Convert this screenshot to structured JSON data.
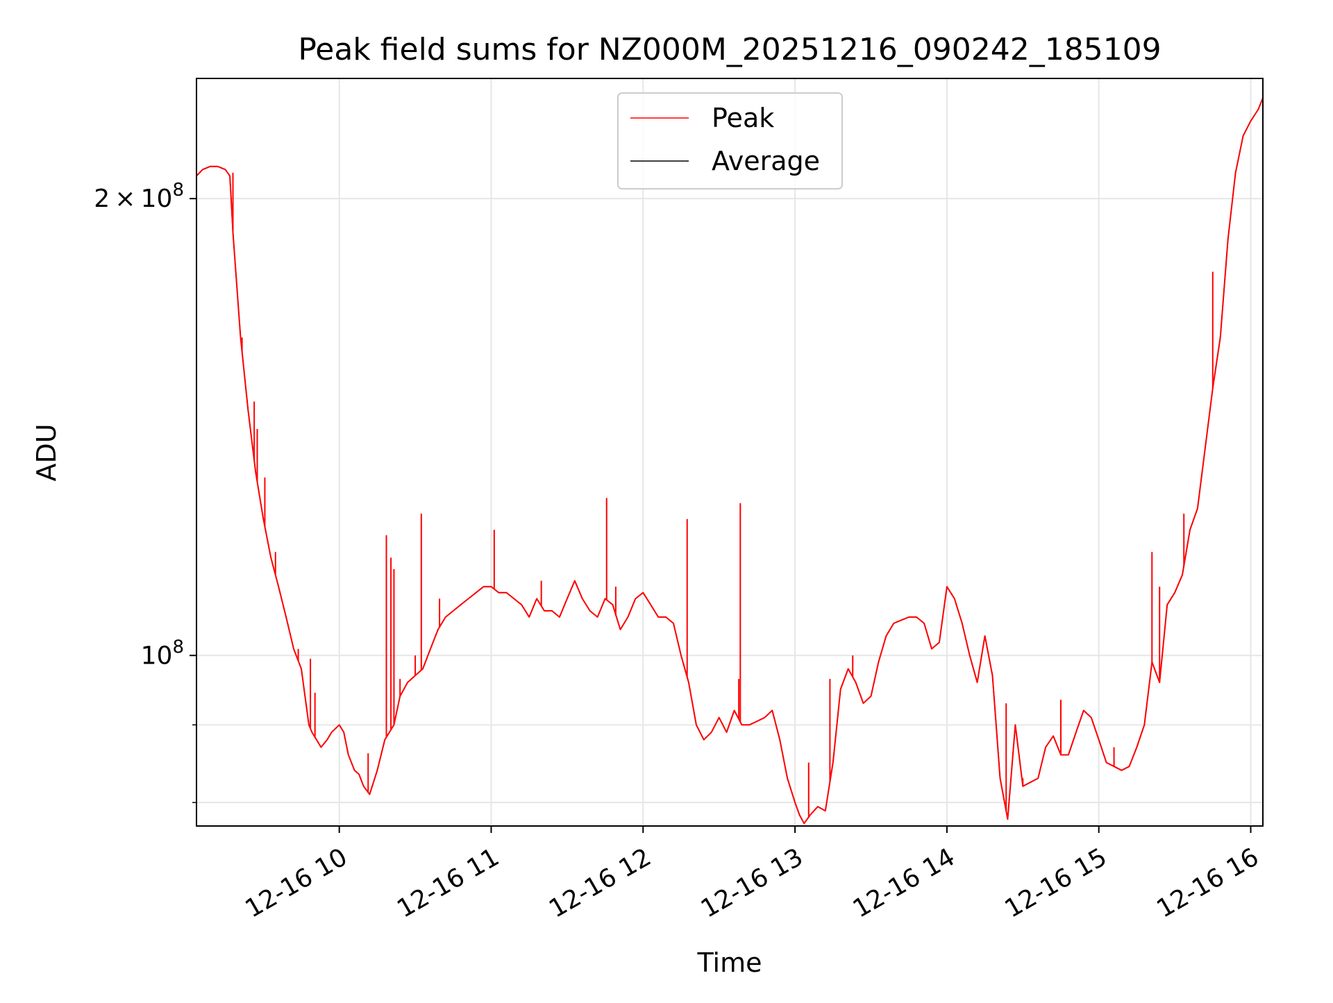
{
  "chart_data": {
    "type": "line",
    "title": "Peak field sums for NZ000M_20251216_090242_185109",
    "xlabel": "Time",
    "ylabel": "ADU",
    "x_unit": "hours",
    "x_tick_labels": [
      "12-16 10",
      "12-16 11",
      "12-16 12",
      "12-16 13",
      "12-16 14",
      "12-16 15",
      "12-16 16"
    ],
    "x_tick_values": [
      10,
      11,
      12,
      13,
      14,
      15,
      16
    ],
    "xlim": [
      9.06,
      16.08
    ],
    "y_scale": "log",
    "ylim": [
      77200000.0,
      240000000.0
    ],
    "y_major_ticks": [
      {
        "value": 100000000,
        "base": "10",
        "exp": "8",
        "label": "10^8"
      },
      {
        "value": 200000000,
        "coef": "2",
        "base": "10",
        "exp": "8",
        "label": "2×10^8"
      }
    ],
    "y_minor_ticks": [
      80000000,
      90000000
    ],
    "grid": true,
    "legend": {
      "position": "upper center",
      "entries": [
        "Peak",
        "Average"
      ]
    },
    "colors": {
      "Peak": "#ff0000",
      "Average": "#000000",
      "grid": "#e6e6e6"
    },
    "series": [
      {
        "name": "Average",
        "x": [
          9.06,
          9.1,
          9.15,
          9.2,
          9.25,
          9.28,
          9.3,
          9.35,
          9.4,
          9.45,
          9.5,
          9.55,
          9.6,
          9.65,
          9.7,
          9.75,
          9.8,
          9.82,
          9.85,
          9.88,
          9.92,
          9.95,
          10.0,
          10.03,
          10.06,
          10.1,
          10.13,
          10.16,
          10.2,
          10.25,
          10.3,
          10.33,
          10.36,
          10.4,
          10.45,
          10.5,
          10.55,
          10.6,
          10.65,
          10.7,
          10.75,
          10.8,
          10.85,
          10.9,
          10.95,
          11.0,
          11.05,
          11.1,
          11.15,
          11.2,
          11.25,
          11.3,
          11.35,
          11.4,
          11.45,
          11.5,
          11.55,
          11.6,
          11.65,
          11.7,
          11.75,
          11.8,
          11.85,
          11.9,
          11.95,
          12.0,
          12.05,
          12.1,
          12.15,
          12.2,
          12.25,
          12.3,
          12.35,
          12.4,
          12.45,
          12.5,
          12.55,
          12.6,
          12.65,
          12.7,
          12.75,
          12.8,
          12.85,
          12.9,
          12.95,
          13.0,
          13.03,
          13.06,
          13.1,
          13.15,
          13.2,
          13.25,
          13.3,
          13.35,
          13.4,
          13.45,
          13.5,
          13.55,
          13.6,
          13.65,
          13.7,
          13.75,
          13.8,
          13.85,
          13.9,
          13.95,
          14.0,
          14.05,
          14.1,
          14.15,
          14.2,
          14.25,
          14.3,
          14.35,
          14.4,
          14.45,
          14.5,
          14.55,
          14.6,
          14.65,
          14.7,
          14.75,
          14.8,
          14.85,
          14.9,
          14.95,
          15.0,
          15.05,
          15.1,
          15.15,
          15.2,
          15.25,
          15.3,
          15.35,
          15.4,
          15.45,
          15.5,
          15.55,
          15.6,
          15.65,
          15.7,
          15.75,
          15.8,
          15.85,
          15.9,
          15.95,
          16.0,
          16.05,
          16.08
        ],
        "y": [
          207000000.0,
          209000000.0,
          210000000.0,
          210000000.0,
          209000000.0,
          207000000.0,
          190000000.0,
          162000000.0,
          145000000.0,
          132000000.0,
          123000000.0,
          116000000.0,
          111000000.0,
          106000000.0,
          101000000.0,
          98000000.0,
          90000000.0,
          89000000.0,
          88000000.0,
          87000000.0,
          88000000.0,
          89000000.0,
          90000000.0,
          89000000.0,
          86000000.0,
          84000000.0,
          83500000.0,
          82000000.0,
          81000000.0,
          84000000.0,
          88000000.0,
          89000000.0,
          90000000.0,
          94000000.0,
          96000000.0,
          97000000.0,
          98000000.0,
          101000000.0,
          104000000.0,
          106000000.0,
          107000000.0,
          108000000.0,
          109000000.0,
          110000000.0,
          111000000.0,
          111000000.0,
          110000000.0,
          110000000.0,
          109000000.0,
          108000000.0,
          106000000.0,
          109000000.0,
          107000000.0,
          107000000.0,
          106000000.0,
          109000000.0,
          112000000.0,
          109000000.0,
          107000000.0,
          106000000.0,
          109000000.0,
          108000000.0,
          104000000.0,
          106000000.0,
          109000000.0,
          110000000.0,
          108000000.0,
          106000000.0,
          106000000.0,
          105000000.0,
          100000000.0,
          96000000.0,
          90000000.0,
          88000000.0,
          89000000.0,
          91000000.0,
          89000000.0,
          92000000.0,
          90000000.0,
          90000000.0,
          90500000.0,
          91000000.0,
          92000000.0,
          88000000.0,
          83000000.0,
          80000000.0,
          78500000.0,
          77500000.0,
          78500000.0,
          79500000.0,
          79000000.0,
          85000000.0,
          95000000.0,
          98000000.0,
          96000000.0,
          93000000.0,
          94000000.0,
          99000000.0,
          103000000.0,
          105000000.0,
          105500000.0,
          106000000.0,
          106000000.0,
          105000000.0,
          101000000.0,
          102000000.0,
          111000000.0,
          109000000.0,
          105000000.0,
          100000000.0,
          96000000.0,
          103000000.0,
          97000000.0,
          83000000.0,
          78000000.0,
          90000000.0,
          82000000.0,
          82500000.0,
          83000000.0,
          87000000.0,
          88500000.0,
          86000000.0,
          86000000.0,
          89000000.0,
          92000000.0,
          91000000.0,
          88000000.0,
          85000000.0,
          84500000.0,
          84000000.0,
          84500000.0,
          87000000.0,
          90000000.0,
          99000000.0,
          96000000.0,
          108000000.0,
          110000000.0,
          113000000.0,
          121000000.0,
          125000000.0,
          137000000.0,
          150000000.0,
          162000000.0,
          188000000.0,
          208000000.0,
          220000000.0,
          225000000.0,
          229000000.0,
          233000000.0
        ]
      },
      {
        "name": "Peak",
        "spikes": [
          {
            "x": 9.3,
            "y": 208000000.0
          },
          {
            "x": 9.36,
            "y": 162000000.0
          },
          {
            "x": 9.44,
            "y": 147000000.0
          },
          {
            "x": 9.46,
            "y": 141000000.0
          },
          {
            "x": 9.51,
            "y": 131000000.0
          },
          {
            "x": 9.58,
            "y": 117000000.0
          },
          {
            "x": 9.73,
            "y": 101000000.0
          },
          {
            "x": 9.81,
            "y": 99500000.0
          },
          {
            "x": 9.84,
            "y": 94500000.0
          },
          {
            "x": 10.19,
            "y": 86200000.0
          },
          {
            "x": 10.31,
            "y": 120000000.0
          },
          {
            "x": 10.34,
            "y": 116000000.0
          },
          {
            "x": 10.36,
            "y": 114000000.0
          },
          {
            "x": 10.4,
            "y": 96500000.0
          },
          {
            "x": 10.5,
            "y": 100000000.0
          },
          {
            "x": 10.54,
            "y": 124000000.0
          },
          {
            "x": 10.66,
            "y": 109000000.0
          },
          {
            "x": 11.02,
            "y": 121000000.0
          },
          {
            "x": 11.33,
            "y": 112000000.0
          },
          {
            "x": 11.76,
            "y": 127000000.0
          },
          {
            "x": 11.82,
            "y": 111000000.0
          },
          {
            "x": 12.29,
            "y": 123000000.0
          },
          {
            "x": 12.64,
            "y": 126000000.0
          },
          {
            "x": 12.63,
            "y": 96500000.0
          },
          {
            "x": 13.09,
            "y": 85000000.0
          },
          {
            "x": 13.23,
            "y": 96500000.0
          },
          {
            "x": 13.38,
            "y": 100000000.0
          },
          {
            "x": 14.39,
            "y": 93000000.0
          },
          {
            "x": 14.5,
            "y": 83000000.0
          },
          {
            "x": 14.71,
            "y": 88000000.0
          },
          {
            "x": 14.75,
            "y": 93500000.0
          },
          {
            "x": 15.1,
            "y": 87000000.0
          },
          {
            "x": 15.35,
            "y": 117000000.0
          },
          {
            "x": 15.4,
            "y": 111000000.0
          },
          {
            "x": 15.56,
            "y": 124000000.0
          },
          {
            "x": 15.75,
            "y": 179000000.0
          }
        ]
      }
    ]
  }
}
